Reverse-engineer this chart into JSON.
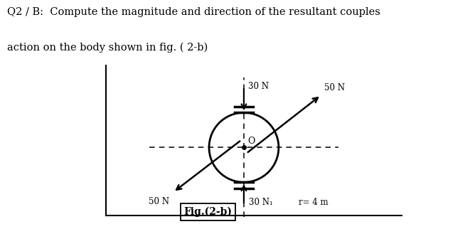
{
  "title_line1": "Q2 / B:  Compute the magnitude and direction of the resultant couples",
  "title_line2": "action on the body shown in fig. ( 2-b)",
  "fig_label": "Fig.(2-b)",
  "radius_label": "r= 4 m",
  "label_30N_top": "30 N",
  "label_30N_bot": "30 N₁",
  "label_50N_tr": "50 N",
  "label_50N_bl": "50 N",
  "label_O": "O",
  "bg_color": "#ffffff",
  "circle_r": 0.7
}
